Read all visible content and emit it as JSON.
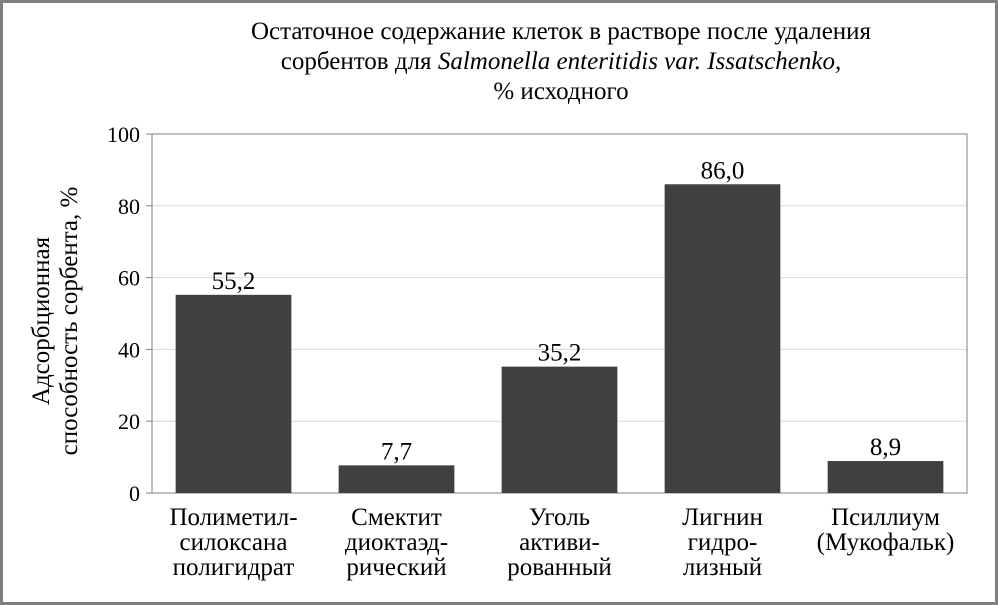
{
  "chart_data": {
    "type": "bar",
    "title_lines": [
      [
        {
          "text": "Остаточное содержание клеток в растворе после удаления",
          "italic": false
        }
      ],
      [
        {
          "text": "сорбентов для ",
          "italic": false
        },
        {
          "text": "Salmonella enteritidis var. Issatschenko,",
          "italic": true
        }
      ],
      [
        {
          "text": "% исходного",
          "italic": false
        }
      ]
    ],
    "ylabel_lines": [
      "Адсорбционная",
      "способность сорбента, %"
    ],
    "categories": [
      [
        "Полиметил-",
        "силоксана",
        "полигидрат"
      ],
      [
        "Смектит",
        "диоктаэд-",
        "рический"
      ],
      [
        "Уголь",
        "активи-",
        "рованный"
      ],
      [
        "Лигнин",
        "гидро-",
        "лизный"
      ],
      [
        "Псиллиум",
        "(Мукофальк)"
      ]
    ],
    "values": [
      55.2,
      7.7,
      35.2,
      86.0,
      8.9
    ],
    "value_labels": [
      "55,2",
      "7,7",
      "35,2",
      "86,0",
      "8,9"
    ],
    "yticks": [
      0,
      20,
      40,
      60,
      80,
      100
    ],
    "ylim": [
      0,
      100
    ],
    "grid": true,
    "bar_color": "#404040",
    "grid_color": "#d9d9d9",
    "axis_color": "#808080"
  }
}
